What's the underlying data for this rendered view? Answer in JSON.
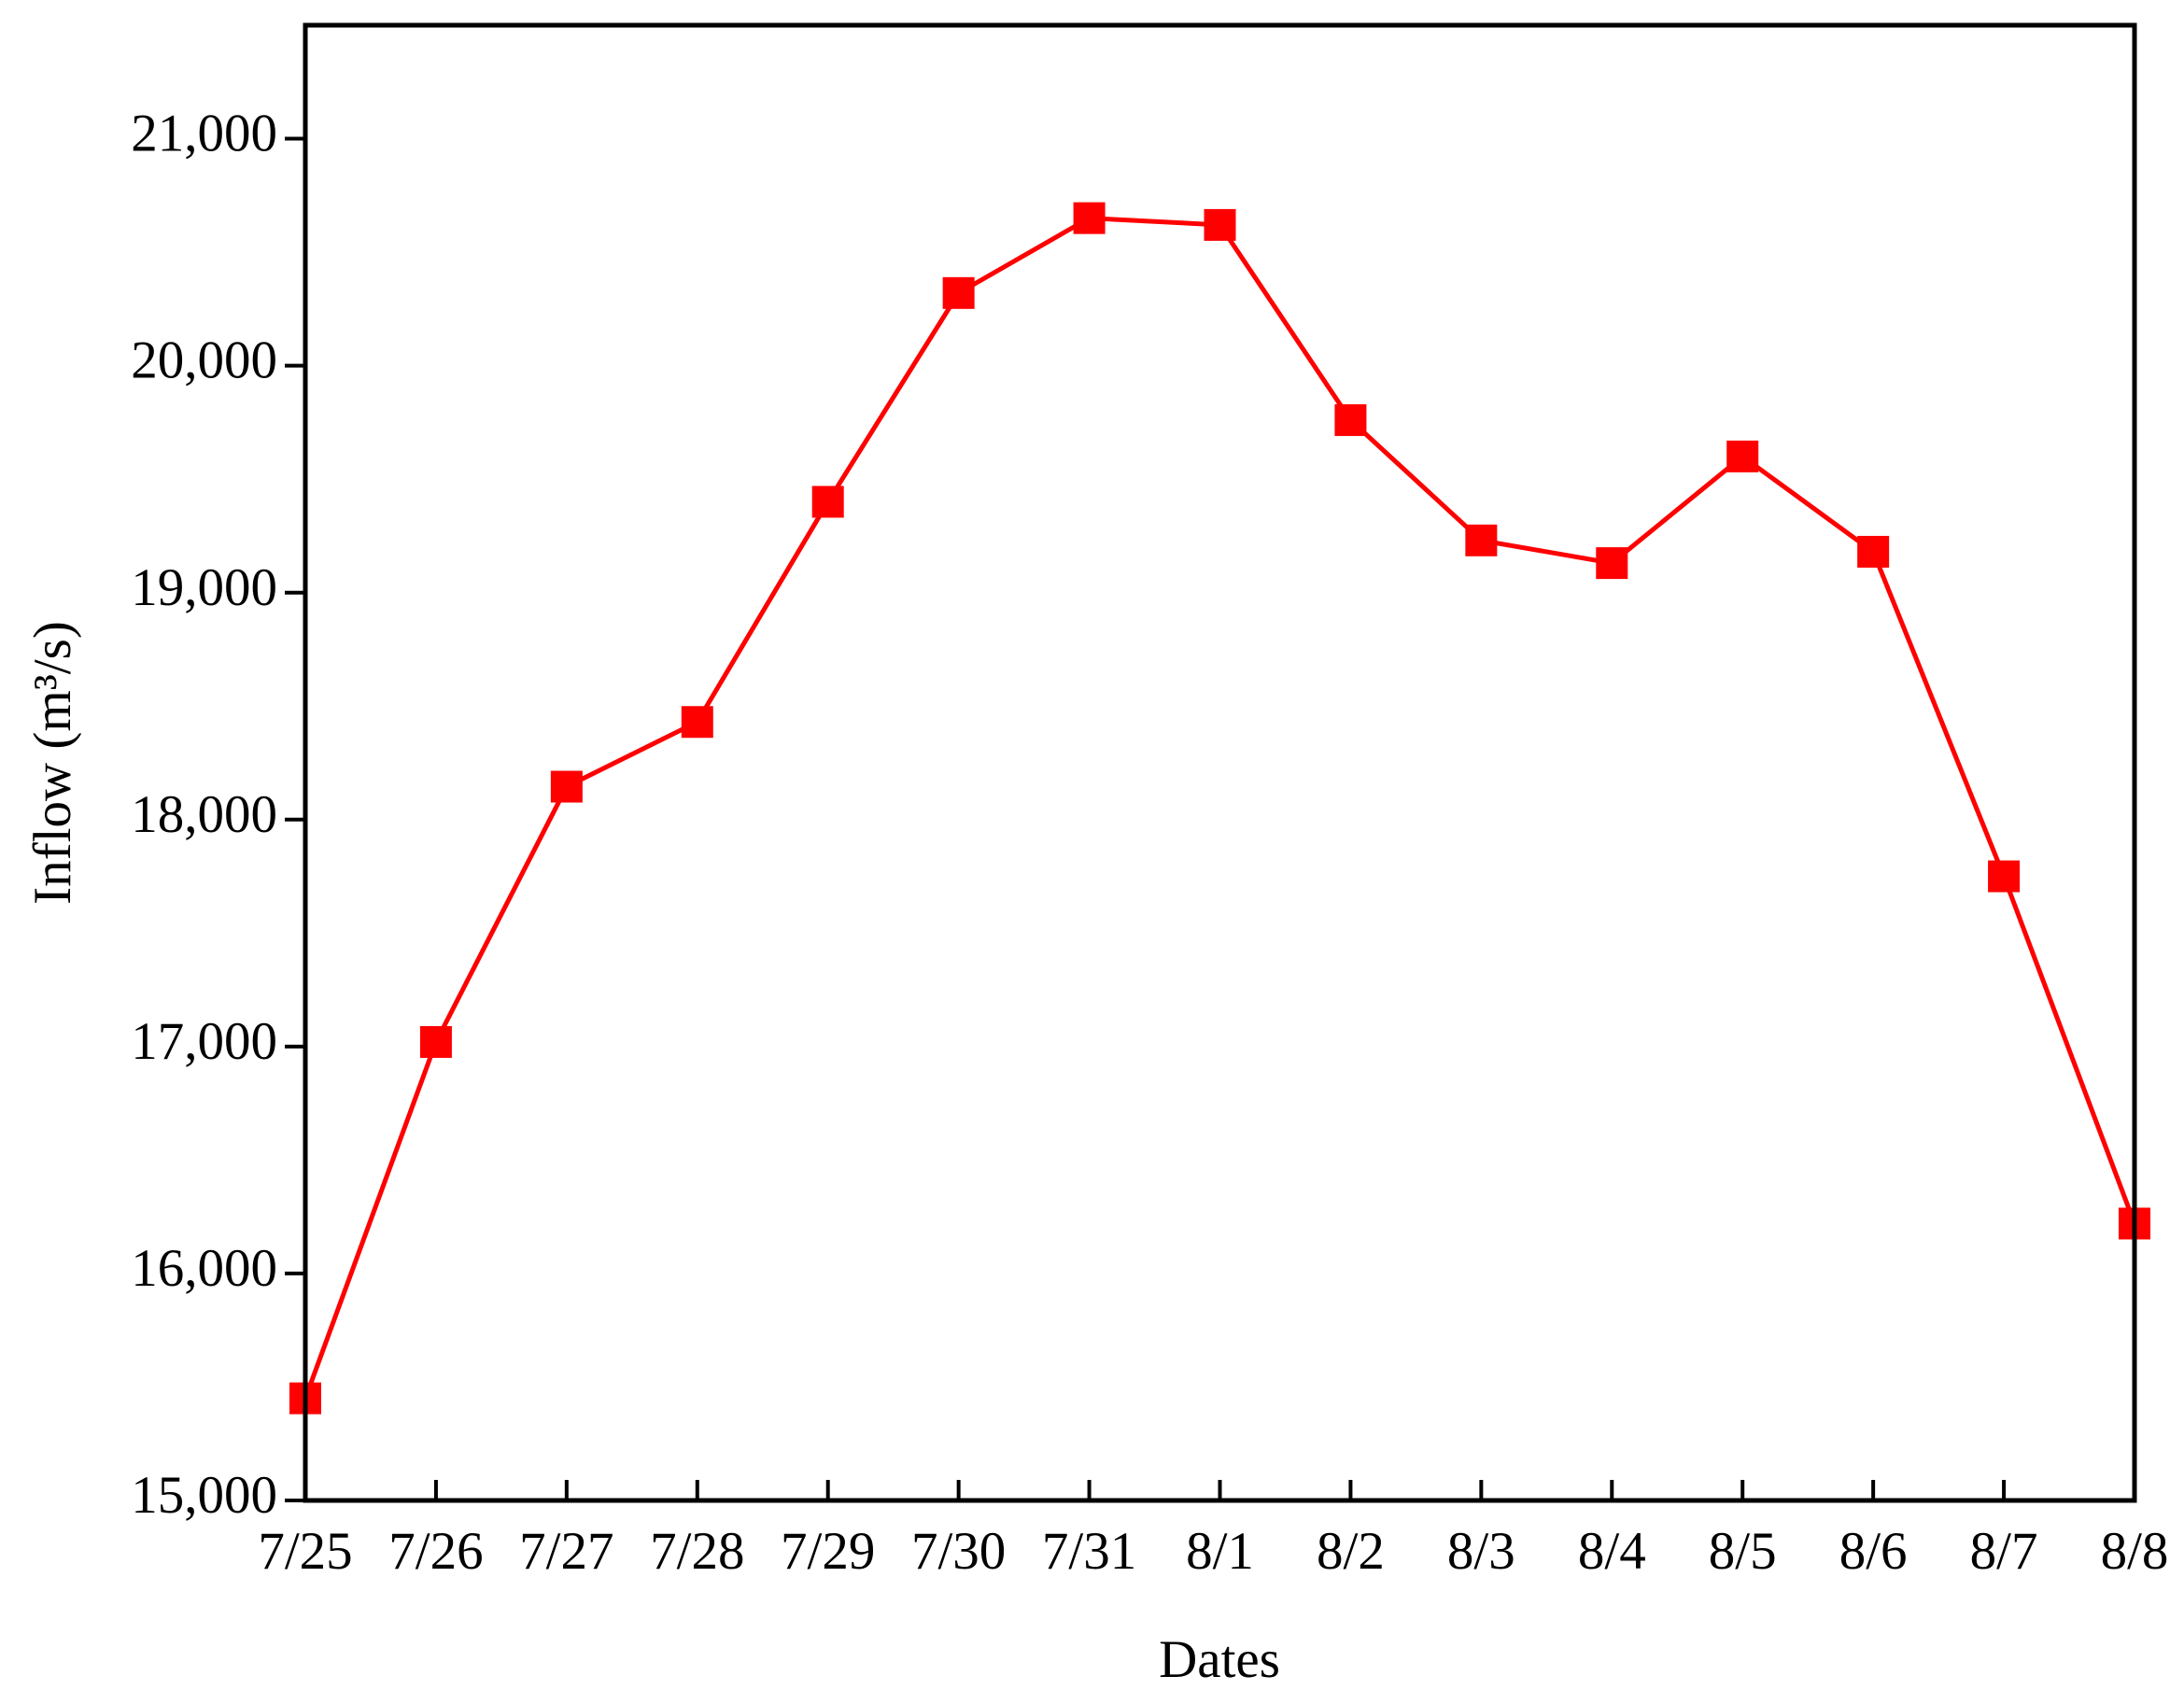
{
  "chart_data": {
    "type": "line",
    "x_label": "Dates",
    "y_label": "Inflow (m³/s)",
    "categories": [
      "7/25",
      "7/26",
      "7/27",
      "7/28",
      "7/29",
      "7/30",
      "7/31",
      "8/1",
      "8/2",
      "8/3",
      "8/4",
      "8/5",
      "8/6",
      "8/7",
      "8/8"
    ],
    "series": [
      {
        "color": "#ff0000",
        "values": [
          15450,
          17020,
          18145,
          18430,
          19400,
          20320,
          20650,
          20620,
          19760,
          19230,
          19130,
          19600,
          19180,
          17750,
          16220
        ]
      }
    ],
    "ylim": [
      15000,
      21500
    ],
    "yticks": [
      {
        "value": 15000,
        "label": "15,000"
      },
      {
        "value": 16000,
        "label": "16,000"
      },
      {
        "value": 17000,
        "label": "17,000"
      },
      {
        "value": 18000,
        "label": "18,000"
      },
      {
        "value": 19000,
        "label": "19,000"
      },
      {
        "value": 20000,
        "label": "20,000"
      },
      {
        "value": 21000,
        "label": "21,000"
      }
    ],
    "grid": false
  }
}
